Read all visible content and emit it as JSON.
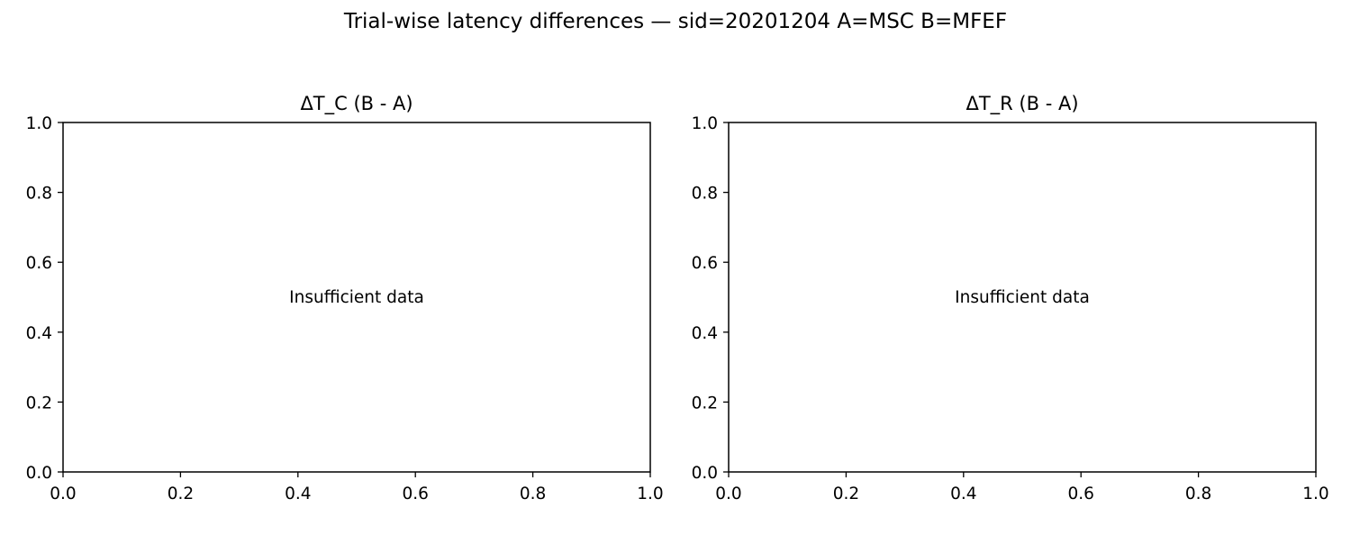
{
  "figure": {
    "suptitle": "Trial-wise latency differences — sid=20201204  A=MSC  B=MFEF"
  },
  "chart_data": [
    {
      "type": "scatter",
      "title": "ΔT_C (B - A)",
      "xlabel": "",
      "ylabel": "",
      "xlim": [
        0.0,
        1.0
      ],
      "ylim": [
        0.0,
        1.0
      ],
      "xticks": [
        "0.0",
        "0.2",
        "0.4",
        "0.6",
        "0.8",
        "1.0"
      ],
      "yticks": [
        "0.0",
        "0.2",
        "0.4",
        "0.6",
        "0.8",
        "1.0"
      ],
      "grid": false,
      "series": [],
      "annotation": "Insufficient data"
    },
    {
      "type": "scatter",
      "title": "ΔT_R (B - A)",
      "xlabel": "",
      "ylabel": "",
      "xlim": [
        0.0,
        1.0
      ],
      "ylim": [
        0.0,
        1.0
      ],
      "xticks": [
        "0.0",
        "0.2",
        "0.4",
        "0.6",
        "0.8",
        "1.0"
      ],
      "yticks": [
        "0.0",
        "0.2",
        "0.4",
        "0.6",
        "0.8",
        "1.0"
      ],
      "grid": false,
      "series": [],
      "annotation": "Insufficient data"
    }
  ]
}
